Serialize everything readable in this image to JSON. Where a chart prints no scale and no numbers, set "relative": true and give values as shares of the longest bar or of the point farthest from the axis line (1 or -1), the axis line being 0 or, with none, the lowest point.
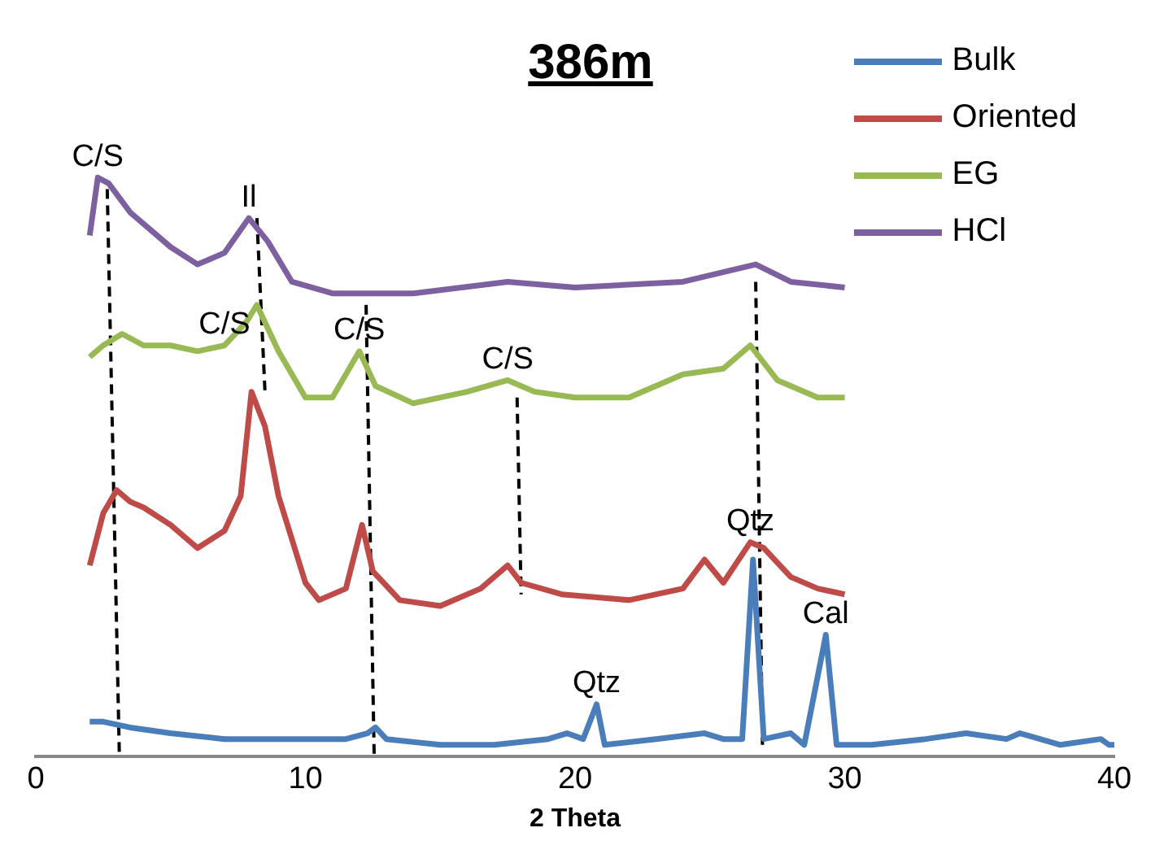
{
  "chart_data": {
    "type": "line",
    "title": "386m",
    "xlabel": "2 Theta",
    "relative": true,
    "legend": "top right",
    "grid": false,
    "marker": "none",
    "xlim": [
      0,
      40
    ],
    "xticks": [
      0,
      10,
      20,
      30,
      40
    ],
    "series": [
      {
        "name": "Bulk",
        "color": "#4a7ebb",
        "x": [
          2.0,
          2.5,
          3.5,
          5,
          7,
          9,
          10,
          11.5,
          12.3,
          12.6,
          13,
          15,
          17,
          19,
          19.7,
          20.3,
          20.8,
          21.1,
          23,
          24.8,
          25.5,
          26.2,
          26.6,
          27,
          28,
          28.5,
          29.3,
          29.7,
          31,
          33,
          34.5,
          36,
          36.5,
          38,
          39.5,
          39.8,
          40
        ],
        "values": [
          0.06,
          0.06,
          0.05,
          0.04,
          0.03,
          0.03,
          0.03,
          0.03,
          0.04,
          0.05,
          0.03,
          0.02,
          0.02,
          0.03,
          0.04,
          0.03,
          0.09,
          0.02,
          0.03,
          0.04,
          0.03,
          0.03,
          0.34,
          0.03,
          0.04,
          0.02,
          0.21,
          0.02,
          0.02,
          0.03,
          0.04,
          0.03,
          0.04,
          0.02,
          0.03,
          0.02,
          0.02
        ]
      },
      {
        "name": "Oriented",
        "color": "#be4b48",
        "x": [
          2.0,
          2.5,
          3,
          3.5,
          4,
          5,
          6,
          7,
          7.6,
          8.0,
          8.5,
          9,
          10,
          10.5,
          11.5,
          12.1,
          12.5,
          13.5,
          15,
          16.5,
          17.5,
          18,
          19.5,
          22,
          24,
          24.8,
          25.5,
          26.5,
          27,
          28,
          29,
          30
        ],
        "values": [
          0.33,
          0.42,
          0.46,
          0.44,
          0.43,
          0.4,
          0.36,
          0.39,
          0.45,
          0.63,
          0.57,
          0.45,
          0.3,
          0.27,
          0.29,
          0.4,
          0.32,
          0.27,
          0.26,
          0.29,
          0.33,
          0.3,
          0.28,
          0.27,
          0.29,
          0.34,
          0.3,
          0.37,
          0.36,
          0.31,
          0.29,
          0.28
        ]
      },
      {
        "name": "EG",
        "color": "#98b954",
        "x": [
          2,
          2.5,
          3.2,
          4,
          5,
          6,
          7,
          7.8,
          8.2,
          9,
          10,
          11,
          12.0,
          12.6,
          14,
          16,
          17.5,
          18.5,
          20,
          22,
          24,
          25.5,
          26.5,
          27.5,
          29,
          30
        ],
        "values": [
          0.69,
          0.71,
          0.73,
          0.71,
          0.71,
          0.7,
          0.71,
          0.75,
          0.78,
          0.7,
          0.62,
          0.62,
          0.7,
          0.64,
          0.61,
          0.63,
          0.65,
          0.63,
          0.62,
          0.62,
          0.66,
          0.67,
          0.71,
          0.65,
          0.62,
          0.62
        ]
      },
      {
        "name": "HCl",
        "color": "#7d60a0",
        "x": [
          2,
          2.3,
          2.7,
          3.5,
          5,
          6,
          7,
          7.9,
          8.6,
          9.5,
          11,
          14,
          17.5,
          20,
          24,
          26.7,
          28,
          30
        ],
        "values": [
          0.9,
          1.0,
          0.99,
          0.94,
          0.88,
          0.85,
          0.87,
          0.93,
          0.89,
          0.82,
          0.8,
          0.8,
          0.82,
          0.81,
          0.82,
          0.85,
          0.82,
          0.81
        ]
      },
      {
        "color": "#000000",
        "line_style": "dashed",
        "x": [
          2.65,
          3.1
        ],
        "values": [
          0.98,
          0
        ]
      },
      {
        "color": "#000000",
        "line_style": "dashed",
        "x": [
          8.2,
          8.5
        ],
        "values": [
          0.93,
          0.63
        ]
      },
      {
        "color": "#000000",
        "line_style": "dashed",
        "x": [
          12.25,
          12.55
        ],
        "values": [
          0.78,
          0
        ]
      },
      {
        "color": "#000000",
        "line_style": "dashed",
        "x": [
          17.85,
          18.0
        ],
        "values": [
          0.62,
          0.28
        ]
      },
      {
        "color": "#000000",
        "line_style": "dashed",
        "x": [
          26.7,
          26.95
        ],
        "values": [
          0.82,
          0.02
        ]
      }
    ],
    "annotations": [
      {
        "text": "C/S",
        "x": 2.3,
        "y": 1.0
      },
      {
        "text": "Il",
        "x": 7.9,
        "y": 0.93
      },
      {
        "text": "C/S",
        "x": 7,
        "y": 0.71
      },
      {
        "text": "C/S",
        "x": 12.0,
        "y": 0.7
      },
      {
        "text": "C/S",
        "x": 17.5,
        "y": 0.65
      },
      {
        "text": "Qtz",
        "x": 26.5,
        "y": 0.37
      },
      {
        "text": "Qtz",
        "x": 20.8,
        "y": 0.09
      },
      {
        "text": "Cal",
        "x": 29.3,
        "y": 0.21
      }
    ]
  }
}
